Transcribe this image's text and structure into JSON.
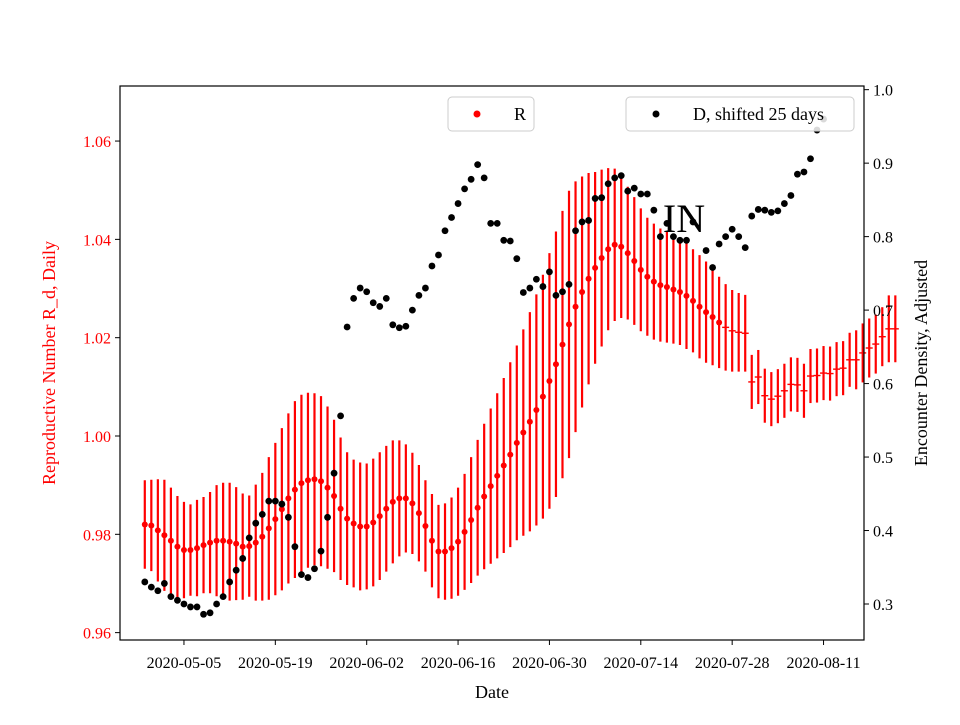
{
  "chart_data": {
    "type": "scatter",
    "xlabel": "Date",
    "ylabel_left": "Reproductive Number R_d, Daily",
    "ylabel_right": "Encounter Density, Adjusted",
    "annotation": "IN",
    "x_start_day": 0,
    "x_label_note": "day 0 = 2020-04-29",
    "x_ticks": [
      {
        "day": 6,
        "label": "2020-05-05"
      },
      {
        "day": 20,
        "label": "2020-05-19"
      },
      {
        "day": 34,
        "label": "2020-06-02"
      },
      {
        "day": 48,
        "label": "2020-06-16"
      },
      {
        "day": 62,
        "label": "2020-06-30"
      },
      {
        "day": 76,
        "label": "2020-07-14"
      },
      {
        "day": 90,
        "label": "2020-07-28"
      },
      {
        "day": 104,
        "label": "2020-08-11"
      }
    ],
    "xlim": [
      -3.8,
      110.2
    ],
    "ylim_left": [
      0.9585,
      1.0712
    ],
    "ylim_right": [
      0.251,
      1.005
    ],
    "left_ticks": [
      0.96,
      0.98,
      1.0,
      1.02,
      1.04,
      1.06
    ],
    "left_tick_labels": [
      "0.96",
      "0.98",
      "1.00",
      "1.02",
      "1.04",
      "1.06"
    ],
    "right_ticks": [
      0.3,
      0.4,
      0.5,
      0.6,
      0.7,
      0.8,
      0.9,
      1.0
    ],
    "right_tick_labels": [
      "0.3",
      "0.4",
      "0.5",
      "0.6",
      "0.7",
      "0.8",
      "0.9",
      "1.0"
    ],
    "colors": {
      "r_series": "#ff0000",
      "d_series": "#000000",
      "axis": "#000000"
    },
    "legend": [
      {
        "label": "R",
        "color": "#ff0000",
        "position": "top-center"
      },
      {
        "label": "D, shifted 25 days",
        "color": "#000000",
        "position": "top-right"
      }
    ],
    "series": [
      {
        "name": "R",
        "axis": "left",
        "color": "#ff0000",
        "start_day": 0,
        "marker_days": [
          0,
          88
        ],
        "values": [
          0.982,
          0.9818,
          0.9808,
          0.9798,
          0.9787,
          0.9775,
          0.9768,
          0.9768,
          0.9772,
          0.9778,
          0.9783,
          0.9787,
          0.9787,
          0.9785,
          0.9781,
          0.9775,
          0.9776,
          0.9783,
          0.9795,
          0.9812,
          0.9831,
          0.9851,
          0.9873,
          0.9891,
          0.9904,
          0.991,
          0.9912,
          0.9908,
          0.9895,
          0.9878,
          0.9852,
          0.9832,
          0.9822,
          0.9816,
          0.9816,
          0.9824,
          0.9837,
          0.9852,
          0.9866,
          0.9873,
          0.9873,
          0.9863,
          0.9843,
          0.9817,
          0.9787,
          0.9765,
          0.9765,
          0.9772,
          0.9785,
          0.9805,
          0.9829,
          0.9854,
          0.9877,
          0.9898,
          0.9919,
          0.994,
          0.9962,
          0.9986,
          1.0007,
          1.0029,
          1.0053,
          1.008,
          1.0112,
          1.0146,
          1.0186,
          1.0227,
          1.0263,
          1.0293,
          1.032,
          1.0342,
          1.0362,
          1.038,
          1.0389,
          1.0385,
          1.0372,
          1.0356,
          1.0338,
          1.0324,
          1.0314,
          1.0307,
          1.0303,
          1.0298,
          1.0293,
          1.0285,
          1.0275,
          1.0263,
          1.0252,
          1.0242,
          1.0231,
          1.0221,
          1.0214,
          1.0211,
          1.0209,
          1.011,
          1.012,
          1.0082,
          1.0075,
          1.0081,
          1.0092,
          1.0105,
          1.0104,
          1.0092,
          1.0122,
          1.0123,
          1.0128,
          1.0127,
          1.0136,
          1.0138,
          1.0155,
          1.0155,
          1.0169,
          1.0179,
          1.0187,
          1.0202,
          1.0218,
          1.0218
        ],
        "err": [
          0.009,
          0.0093,
          0.0104,
          0.0113,
          0.0108,
          0.0103,
          0.0098,
          0.0093,
          0.0098,
          0.0098,
          0.0103,
          0.0113,
          0.0118,
          0.012,
          0.0115,
          0.0108,
          0.0103,
          0.0118,
          0.013,
          0.0145,
          0.0155,
          0.0165,
          0.0173,
          0.018,
          0.018,
          0.0178,
          0.0175,
          0.0173,
          0.0165,
          0.0155,
          0.0145,
          0.0135,
          0.013,
          0.013,
          0.0128,
          0.013,
          0.013,
          0.0128,
          0.0125,
          0.0118,
          0.011,
          0.0103,
          0.0098,
          0.0093,
          0.0095,
          0.0095,
          0.0098,
          0.0103,
          0.011,
          0.0118,
          0.0128,
          0.0138,
          0.0148,
          0.0158,
          0.0168,
          0.0178,
          0.0188,
          0.0198,
          0.021,
          0.0223,
          0.0235,
          0.0248,
          0.026,
          0.027,
          0.0272,
          0.0272,
          0.0255,
          0.0235,
          0.0215,
          0.0195,
          0.018,
          0.0165,
          0.0155,
          0.0145,
          0.0135,
          0.013,
          0.0125,
          0.012,
          0.0118,
          0.0115,
          0.0113,
          0.011,
          0.0108,
          0.0108,
          0.0105,
          0.0105,
          0.0103,
          0.0098,
          0.0093,
          0.0088,
          0.0083,
          0.008,
          0.0078,
          0.0055,
          0.0055,
          0.0055,
          0.0055,
          0.0055,
          0.0055,
          0.0055,
          0.0055,
          0.0055,
          0.0055,
          0.0055,
          0.0055,
          0.0055,
          0.0055,
          0.0055,
          0.0055,
          0.006,
          0.006,
          0.006,
          0.006,
          0.006,
          0.0068,
          0.0068
        ]
      },
      {
        "name": "D, shifted 25 days",
        "axis": "right",
        "color": "#000000",
        "points": [
          [
            0,
            0.33
          ],
          [
            1,
            0.323
          ],
          [
            2,
            0.318
          ],
          [
            3,
            0.328
          ],
          [
            4,
            0.31
          ],
          [
            5,
            0.305
          ],
          [
            6,
            0.3
          ],
          [
            7,
            0.296
          ],
          [
            8,
            0.296
          ],
          [
            9,
            0.286
          ],
          [
            10,
            0.288
          ],
          [
            11,
            0.3
          ],
          [
            12,
            0.31
          ],
          [
            13,
            0.33
          ],
          [
            14,
            0.346
          ],
          [
            15,
            0.362
          ],
          [
            16,
            0.39
          ],
          [
            17,
            0.41
          ],
          [
            18,
            0.422
          ],
          [
            19,
            0.44
          ],
          [
            20,
            0.44
          ],
          [
            21,
            0.436
          ],
          [
            22,
            0.418
          ],
          [
            23,
            0.378
          ],
          [
            24,
            0.34
          ],
          [
            25,
            0.336
          ],
          [
            26,
            0.348
          ],
          [
            27,
            0.372
          ],
          [
            28,
            0.418
          ],
          [
            29,
            0.478
          ],
          [
            30,
            0.556
          ],
          [
            31,
            0.677
          ],
          [
            32,
            0.716
          ],
          [
            33,
            0.73
          ],
          [
            34,
            0.725
          ],
          [
            35,
            0.71
          ],
          [
            36,
            0.705
          ],
          [
            37,
            0.716
          ],
          [
            38,
            0.68
          ],
          [
            39,
            0.676
          ],
          [
            40,
            0.678
          ],
          [
            41,
            0.7
          ],
          [
            42,
            0.72
          ],
          [
            43,
            0.73
          ],
          [
            44,
            0.76
          ],
          [
            45,
            0.775
          ],
          [
            46,
            0.808
          ],
          [
            47,
            0.826
          ],
          [
            48,
            0.845
          ],
          [
            49,
            0.865
          ],
          [
            50,
            0.878
          ],
          [
            51,
            0.898
          ],
          [
            52,
            0.88
          ],
          [
            53,
            0.818
          ],
          [
            54,
            0.818
          ],
          [
            55,
            0.795
          ],
          [
            56,
            0.794
          ],
          [
            57,
            0.77
          ],
          [
            58,
            0.724
          ],
          [
            59,
            0.73
          ],
          [
            60,
            0.742
          ],
          [
            61,
            0.732
          ],
          [
            62,
            0.752
          ],
          [
            63,
            0.72
          ],
          [
            64,
            0.725
          ],
          [
            65,
            0.735
          ],
          [
            66,
            0.808
          ],
          [
            67,
            0.82
          ],
          [
            68,
            0.822
          ],
          [
            69,
            0.852
          ],
          [
            70,
            0.853
          ],
          [
            71,
            0.872
          ],
          [
            72,
            0.88
          ],
          [
            73,
            0.883
          ],
          [
            74,
            0.862
          ],
          [
            75,
            0.866
          ],
          [
            76,
            0.858
          ],
          [
            77,
            0.858
          ],
          [
            78,
            0.836
          ],
          [
            79,
            0.8
          ],
          [
            80,
            0.818
          ],
          [
            81,
            0.8
          ],
          [
            82,
            0.795
          ],
          [
            83,
            0.795
          ],
          [
            84,
            0.82
          ],
          [
            86,
            0.781
          ],
          [
            87,
            0.758
          ],
          [
            88,
            0.79
          ],
          [
            89,
            0.8
          ],
          [
            90,
            0.81
          ],
          [
            91,
            0.8
          ],
          [
            92,
            0.785
          ],
          [
            93,
            0.828
          ],
          [
            94,
            0.837
          ],
          [
            95,
            0.836
          ],
          [
            96,
            0.833
          ],
          [
            97,
            0.835
          ],
          [
            98,
            0.845
          ],
          [
            99,
            0.856
          ],
          [
            100,
            0.885
          ],
          [
            101,
            0.888
          ],
          [
            102,
            0.906
          ],
          [
            103,
            0.945
          ],
          [
            104,
            0.96
          ]
        ]
      }
    ]
  }
}
